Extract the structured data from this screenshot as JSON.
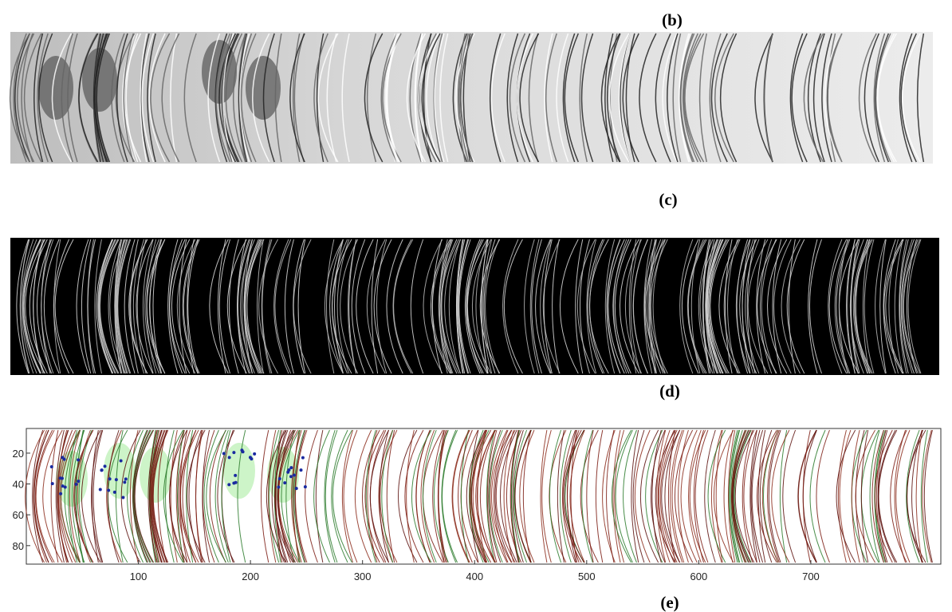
{
  "panels": [
    {
      "label": "(b)"
    },
    {
      "label": "(c)"
    },
    {
      "label": "(d)"
    },
    {
      "label": "(e)"
    }
  ],
  "axes": {
    "xlim": [
      0,
      816
    ],
    "xticks": [
      100,
      200,
      300,
      400,
      500,
      600,
      700
    ],
    "ylim": [
      4,
      92
    ],
    "yticks": [
      20,
      40,
      60,
      80
    ]
  }
}
